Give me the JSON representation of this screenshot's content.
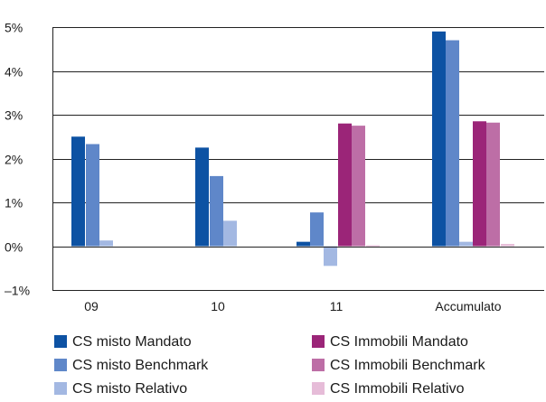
{
  "chart_data": {
    "type": "bar",
    "categories": [
      "09",
      "10",
      "11",
      "Accumulato"
    ],
    "ylim": [
      -1,
      5
    ],
    "yticks": [
      -1,
      0,
      1,
      2,
      3,
      4,
      5
    ],
    "ytick_labels": [
      "–1%",
      "0%",
      "1%",
      "2%",
      "3%",
      "4%",
      "5%"
    ],
    "grid": true,
    "legend_position": "bottom",
    "series": [
      {
        "name": "CS misto Mandato",
        "color": "#0d52a3",
        "values": [
          2.5,
          2.25,
          0.1,
          4.9
        ]
      },
      {
        "name": "CS misto Benchmark",
        "color": "#5f87c9",
        "values": [
          2.33,
          1.6,
          0.77,
          4.7
        ]
      },
      {
        "name": "CS misto Relativo",
        "color": "#a3b8e2",
        "values": [
          0.13,
          0.58,
          -0.45,
          0.1
        ]
      },
      {
        "name": "CS Immobili Mandato",
        "color": "#9b2578",
        "values": [
          null,
          null,
          2.8,
          2.85
        ]
      },
      {
        "name": "CS Immobili Benchmark",
        "color": "#bd6ea6",
        "values": [
          null,
          null,
          2.75,
          2.82
        ]
      },
      {
        "name": "CS Immobili Relativo",
        "color": "#e6bcd8",
        "values": [
          null,
          null,
          0.02,
          0.05
        ]
      }
    ]
  }
}
